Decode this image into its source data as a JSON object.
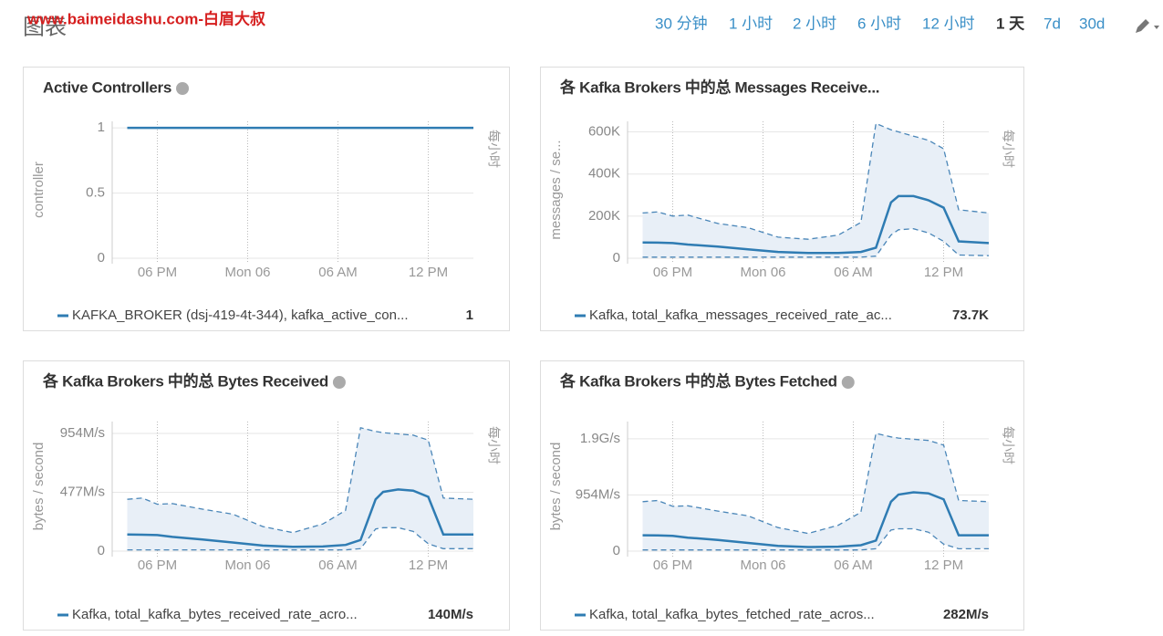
{
  "header": {
    "title": "图表",
    "watermark": "www.baimeidashu.com-白眉大叔",
    "time_ranges": [
      "30 分钟",
      "1 小时",
      "2 小时",
      "6 小时",
      "12 小时",
      "1 天",
      "7d",
      "30d"
    ],
    "active_range_index": 5
  },
  "chart_data": [
    {
      "type": "line",
      "title": "Active Controllers",
      "y_label": "controller",
      "right_label": "每小时",
      "help_icon": true,
      "x": [
        1,
        2,
        3,
        4,
        6,
        8,
        10,
        12,
        14,
        15.5,
        16.5,
        17.5,
        18,
        19,
        20,
        21,
        22,
        24
      ],
      "xlim": [
        0,
        24
      ],
      "xticks": [
        {
          "value": 3,
          "label": "06 PM"
        },
        {
          "value": 9,
          "label": "Mon 06"
        },
        {
          "value": 15,
          "label": "06 AM"
        },
        {
          "value": 21,
          "label": "12 PM"
        }
      ],
      "ylim": [
        0,
        1.05
      ],
      "yticks": [
        0,
        0.5,
        1
      ],
      "grid": true,
      "series": [
        {
          "name": "KAFKA_BROKER (dsj-419-4t-344), kafka_active_con...",
          "color": "#2f7cb3",
          "values": [
            1,
            1,
            1,
            1,
            1,
            1,
            1,
            1,
            1,
            1,
            1,
            1,
            1,
            1,
            1,
            1,
            1,
            1
          ],
          "legend_value": 1
        }
      ]
    },
    {
      "type": "line",
      "title": "各 Kafka Brokers 中的总 Messages Receive...",
      "y_label": "messages / se...",
      "right_label": "每小时",
      "help_icon": false,
      "x": [
        1,
        2,
        3,
        4,
        6,
        8,
        10,
        12,
        14,
        15.5,
        16.5,
        17.5,
        18,
        19,
        20,
        21,
        22,
        24
      ],
      "xlim": [
        0,
        24
      ],
      "xticks": [
        {
          "value": 3,
          "label": "06 PM"
        },
        {
          "value": 9,
          "label": "Mon 06"
        },
        {
          "value": 15,
          "label": "06 AM"
        },
        {
          "value": 21,
          "label": "12 PM"
        }
      ],
      "ylim": [
        0,
        650000
      ],
      "yticks": [
        0,
        {
          "value": 200000,
          "label": "200K"
        },
        {
          "value": 400000,
          "label": "400K"
        },
        {
          "value": 600000,
          "label": "600K"
        }
      ],
      "grid": true,
      "series": [
        {
          "name": "Kafka, total_kafka_messages_received_rate_ac...",
          "color": "#2f7cb3",
          "values": [
            75000,
            74000,
            72000,
            65000,
            55000,
            42000,
            30000,
            25000,
            25000,
            30000,
            50000,
            265000,
            295000,
            295000,
            275000,
            240000,
            80000,
            72000
          ],
          "upper": [
            215000,
            220000,
            200000,
            205000,
            165000,
            145000,
            100000,
            90000,
            110000,
            170000,
            640000,
            610000,
            600000,
            580000,
            560000,
            520000,
            230000,
            215000
          ],
          "lower": [
            5000,
            5000,
            5000,
            5000,
            5000,
            5000,
            5000,
            5000,
            5000,
            5000,
            10000,
            110000,
            135000,
            140000,
            120000,
            80000,
            15000,
            12000
          ],
          "legend_value": {
            "value": 73700,
            "label": "73.7K"
          }
        }
      ]
    },
    {
      "type": "line",
      "title": "各 Kafka Brokers 中的总 Bytes Received",
      "y_label": "bytes / second",
      "right_label": "每小时",
      "help_icon": true,
      "x": [
        1,
        2,
        3,
        4,
        6,
        8,
        10,
        12,
        14,
        15.5,
        16.5,
        17.5,
        18,
        19,
        20,
        21,
        22,
        24
      ],
      "xlim": [
        0,
        24
      ],
      "xticks": [
        {
          "value": 3,
          "label": "06 PM"
        },
        {
          "value": 9,
          "label": "Mon 06"
        },
        {
          "value": 15,
          "label": "06 AM"
        },
        {
          "value": 21,
          "label": "12 PM"
        }
      ],
      "ylim": [
        0,
        1050
      ],
      "yticks": [
        0,
        {
          "value": 477,
          "label": "477M/s"
        },
        {
          "value": 954,
          "label": "954M/s"
        }
      ],
      "grid": true,
      "series": [
        {
          "name": "Kafka, total_kafka_bytes_received_rate_acro...",
          "color": "#2f7cb3",
          "values": [
            135,
            133,
            130,
            115,
            95,
            70,
            45,
            35,
            38,
            50,
            90,
            420,
            480,
            500,
            490,
            440,
            135,
            135
          ],
          "upper": [
            420,
            430,
            380,
            385,
            340,
            300,
            200,
            150,
            220,
            330,
            1000,
            970,
            960,
            950,
            940,
            900,
            430,
            420
          ],
          "lower": [
            10,
            10,
            10,
            10,
            10,
            10,
            10,
            10,
            10,
            10,
            20,
            180,
            190,
            190,
            160,
            60,
            20,
            20
          ],
          "legend_value": {
            "value": 140,
            "label": "140M/s"
          }
        }
      ]
    },
    {
      "type": "line",
      "title": "各 Kafka Brokers 中的总 Bytes Fetched",
      "y_label": "bytes / second",
      "right_label": "每小时",
      "help_icon": true,
      "x": [
        1,
        2,
        3,
        4,
        6,
        8,
        10,
        12,
        14,
        15.5,
        16.5,
        17.5,
        18,
        19,
        20,
        21,
        22,
        24
      ],
      "xlim": [
        0,
        24
      ],
      "xticks": [
        {
          "value": 3,
          "label": "06 PM"
        },
        {
          "value": 9,
          "label": "Mon 06"
        },
        {
          "value": 15,
          "label": "06 AM"
        },
        {
          "value": 21,
          "label": "12 PM"
        }
      ],
      "ylim": [
        0,
        2200
      ],
      "yticks": [
        0,
        {
          "value": 954,
          "label": "954M/s"
        },
        {
          "value": 1907,
          "label": "1.9G/s"
        }
      ],
      "grid": true,
      "series": [
        {
          "name": "Kafka, total_kafka_bytes_fetched_rate_acros...",
          "color": "#2f7cb3",
          "values": [
            270,
            266,
            260,
            230,
            190,
            140,
            90,
            70,
            76,
            100,
            180,
            840,
            960,
            1000,
            980,
            880,
            270,
            270
          ],
          "upper": [
            840,
            860,
            760,
            770,
            680,
            600,
            400,
            300,
            440,
            660,
            2000,
            1940,
            1920,
            1900,
            1880,
            1800,
            860,
            840
          ],
          "lower": [
            20,
            20,
            20,
            20,
            20,
            20,
            20,
            20,
            20,
            20,
            40,
            360,
            380,
            380,
            320,
            120,
            40,
            40
          ],
          "legend_value": {
            "value": 282,
            "label": "282M/s"
          }
        }
      ]
    }
  ]
}
